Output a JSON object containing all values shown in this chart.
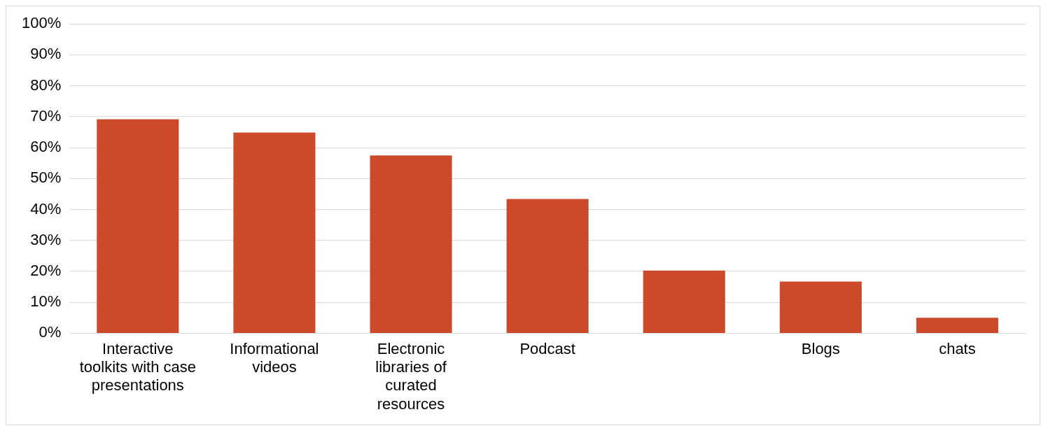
{
  "chart_data": {
    "type": "bar",
    "categories": [
      "Interactive toolkits with case presentations",
      "Informational videos",
      "Electronic libraries of curated resources",
      "Podcast",
      null,
      "Blogs",
      "chats"
    ],
    "values": [
      69.2,
      64.9,
      57.5,
      43.4,
      20.3,
      16.7,
      5.0
    ],
    "color": "#cc4a29",
    "ylim": [
      0,
      100
    ],
    "yticks": [
      {
        "value": 0,
        "label": "0%"
      },
      {
        "value": 10,
        "label": "10%"
      },
      {
        "value": 20,
        "label": "20%"
      },
      {
        "value": 30,
        "label": "30%"
      },
      {
        "value": 40,
        "label": "40%"
      },
      {
        "value": 50,
        "label": "50%"
      },
      {
        "value": 60,
        "label": "60%"
      },
      {
        "value": 70,
        "label": "70%"
      },
      {
        "value": 80,
        "label": "80%"
      },
      {
        "value": 90,
        "label": "90%"
      },
      {
        "value": 100,
        "label": "100%"
      }
    ],
    "grid": "y"
  }
}
